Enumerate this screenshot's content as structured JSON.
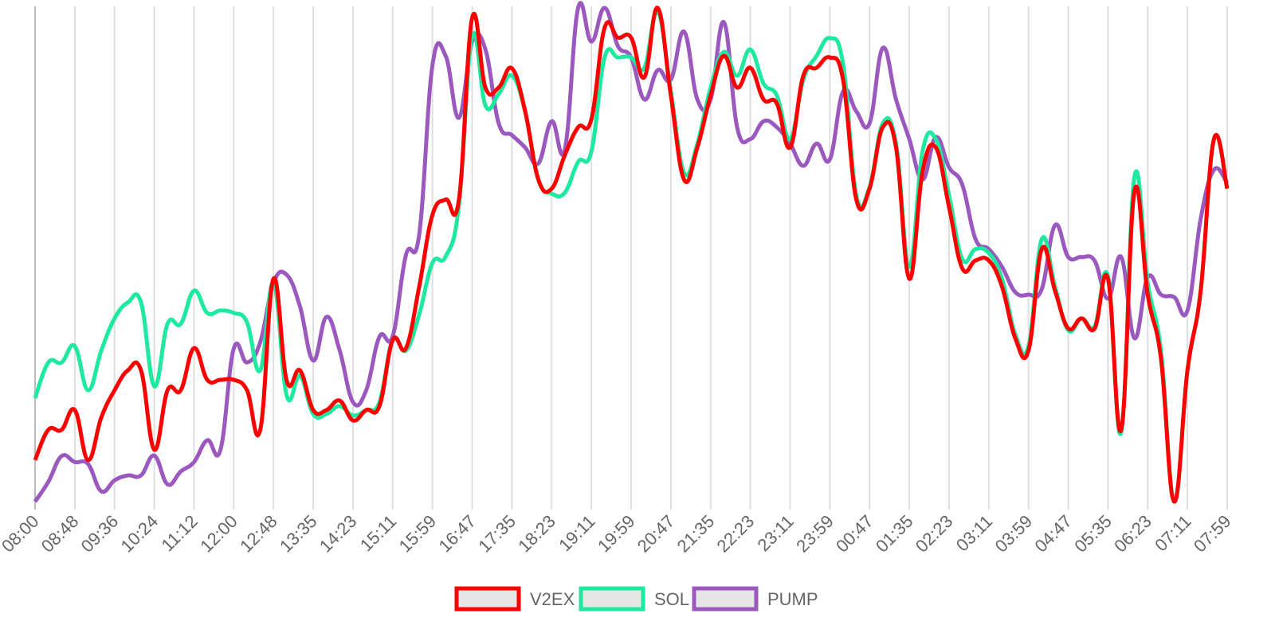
{
  "chart_data": {
    "type": "line",
    "categories": [
      "08:00",
      null,
      null,
      "08:48",
      null,
      null,
      "09:36",
      null,
      null,
      "10:24",
      null,
      null,
      "11:12",
      null,
      null,
      "12:00",
      null,
      null,
      "12:48",
      null,
      null,
      "13:35",
      null,
      null,
      "14:23",
      null,
      null,
      "15:11",
      null,
      null,
      "15:59",
      null,
      null,
      "16:47",
      null,
      null,
      "17:35",
      null,
      null,
      "18:23",
      null,
      null,
      "19:11",
      null,
      null,
      "19:59",
      null,
      null,
      "20:47",
      null,
      null,
      "21:35",
      null,
      null,
      "22:23",
      null,
      null,
      "23:11",
      null,
      null,
      "23:59",
      null,
      null,
      "00:47",
      null,
      null,
      "01:35",
      null,
      null,
      "02:23",
      null,
      null,
      "03:11",
      null,
      null,
      "03:59",
      null,
      null,
      "04:47",
      null,
      null,
      "05:35",
      null,
      null,
      "06:23",
      null,
      null,
      "07:11",
      null,
      null,
      "07:59"
    ],
    "series": [
      {
        "name": "V2EX",
        "color": "#ff0000",
        "values": [
          8.4,
          14.5,
          14.5,
          18.5,
          8.4,
          17,
          22.5,
          26.5,
          26.5,
          10.5,
          22.5,
          22.5,
          31,
          24.6,
          24.6,
          24.6,
          22.5,
          14.5,
          45,
          24.4,
          26.5,
          18.5,
          18.5,
          20.4,
          16.4,
          18.5,
          19.3,
          32.6,
          31,
          43.4,
          57.9,
          61,
          61,
          97.7,
          83.6,
          83.6,
          87.5,
          78.8,
          65,
          63.2,
          70,
          75.6,
          77.2,
          95.7,
          93.7,
          93.7,
          85.7,
          99.7,
          82,
          65,
          71.5,
          82,
          90,
          83.6,
          87.6,
          81.2,
          80.4,
          71.5,
          86,
          87.6,
          89.7,
          85.2,
          61,
          63.2,
          75.6,
          71.5,
          45,
          66.7,
          71.5,
          59.5,
          47.1,
          48.7,
          48.7,
          43.4,
          33,
          30.5,
          51,
          42.6,
          35,
          37,
          35,
          45,
          14.5,
          62.7,
          41.8,
          28.9,
          0,
          26.5,
          42.6,
          73.2,
          63.2
        ]
      },
      {
        "name": "SOL",
        "color": "#1de9a0",
        "values": [
          20.9,
          28.1,
          28.1,
          31.4,
          22.5,
          30.5,
          37,
          40.2,
          40.2,
          23.3,
          35.9,
          35.9,
          42.6,
          38.1,
          38.6,
          38.1,
          36.2,
          26.5,
          44.2,
          21.4,
          25.4,
          17.7,
          17.7,
          19.3,
          17.4,
          18.5,
          20.1,
          32.6,
          30.5,
          37.8,
          48.2,
          49.5,
          59.8,
          94,
          80,
          82.3,
          86,
          78.8,
          65,
          62.2,
          62.4,
          68.6,
          70.7,
          89.7,
          89.7,
          89.7,
          87.6,
          98.9,
          82.8,
          66.4,
          72.3,
          83.6,
          90.8,
          86,
          91.3,
          84.4,
          82,
          73.2,
          85.2,
          90,
          93.6,
          88.4,
          61.9,
          63.5,
          76.4,
          72.3,
          47.4,
          70.7,
          73.2,
          61.9,
          49,
          51,
          50.2,
          45,
          33.8,
          31.4,
          53,
          43.4,
          34.6,
          37,
          35.4,
          45.5,
          14,
          65.6,
          44.2,
          30.5,
          0,
          26.5,
          42.6,
          73.2,
          63.2
        ]
      },
      {
        "name": "PUMP",
        "color": "#9b59c0",
        "values": [
          0,
          4,
          9.2,
          8,
          7.6,
          2.1,
          4.3,
          5.3,
          5.3,
          9.3,
          3.5,
          6.1,
          8,
          12.4,
          10.5,
          30.9,
          28.1,
          32.2,
          44.2,
          45.8,
          39.4,
          28.5,
          37.3,
          30.5,
          20.1,
          22.5,
          33.3,
          33.4,
          49.8,
          53.9,
          88.1,
          90,
          77.5,
          92.9,
          91.3,
          76.4,
          74,
          71.5,
          68.3,
          76.8,
          71.2,
          99.7,
          92.9,
          99.7,
          92,
          89.7,
          81.2,
          87.1,
          85.2,
          94.9,
          81.2,
          81.2,
          96.8,
          75.6,
          73.2,
          76.8,
          75.6,
          72.3,
          67.8,
          72.3,
          69.1,
          82.8,
          78.8,
          76.4,
          91.6,
          81.2,
          73.2,
          65,
          73.6,
          67.5,
          64,
          53,
          51,
          47.4,
          42.3,
          41.8,
          42.9,
          55.8,
          49.4,
          49.4,
          48.6,
          41,
          49.4,
          33,
          45.3,
          41.8,
          41.3,
          38.6,
          57.1,
          67,
          64.3
        ]
      }
    ],
    "ylim": [
      0,
      100
    ],
    "x_grid": true,
    "legend": "bottom"
  }
}
